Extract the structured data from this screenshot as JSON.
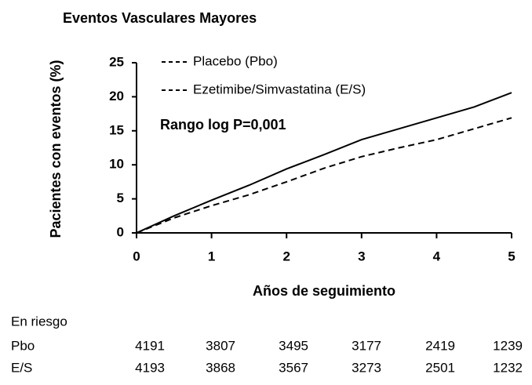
{
  "chart_data": {
    "type": "line",
    "title": "Eventos Vasculares Mayores",
    "xlabel": "Años de seguimiento",
    "ylabel": "Pacientes con eventos (%)",
    "annotation": "Rango log P=0,001",
    "x": [
      0,
      0.5,
      1,
      1.5,
      2,
      2.5,
      3,
      3.5,
      4,
      4.5,
      5
    ],
    "series": [
      {
        "name": "Placebo (Pbo)",
        "color": "#000000",
        "dash": "solid",
        "values": [
          0,
          2.5,
          4.8,
          7.0,
          9.4,
          11.5,
          13.7,
          15.3,
          16.9,
          18.5,
          20.6
        ]
      },
      {
        "name": "Ezetimibe/Simvastatina (E/S)",
        "color": "#000000",
        "dash": "dashed",
        "values": [
          0,
          2.2,
          4.0,
          5.6,
          7.5,
          9.5,
          11.2,
          12.5,
          13.7,
          15.3,
          16.9
        ]
      }
    ],
    "xlim": [
      0,
      5
    ],
    "xticks": [
      0,
      1,
      2,
      3,
      4,
      5
    ],
    "ylim": [
      0,
      25
    ],
    "yticks": [
      0,
      5,
      10,
      15,
      20,
      25
    ],
    "grid": false,
    "legend": "top-left",
    "risk_table": {
      "title": "En riesgo",
      "rows": [
        {
          "label": "Pbo",
          "values": [
            4191,
            3807,
            3495,
            3177,
            2419,
            1239
          ]
        },
        {
          "label": "E/S",
          "values": [
            4193,
            3868,
            3567,
            3273,
            2501,
            1232
          ]
        }
      ]
    }
  }
}
